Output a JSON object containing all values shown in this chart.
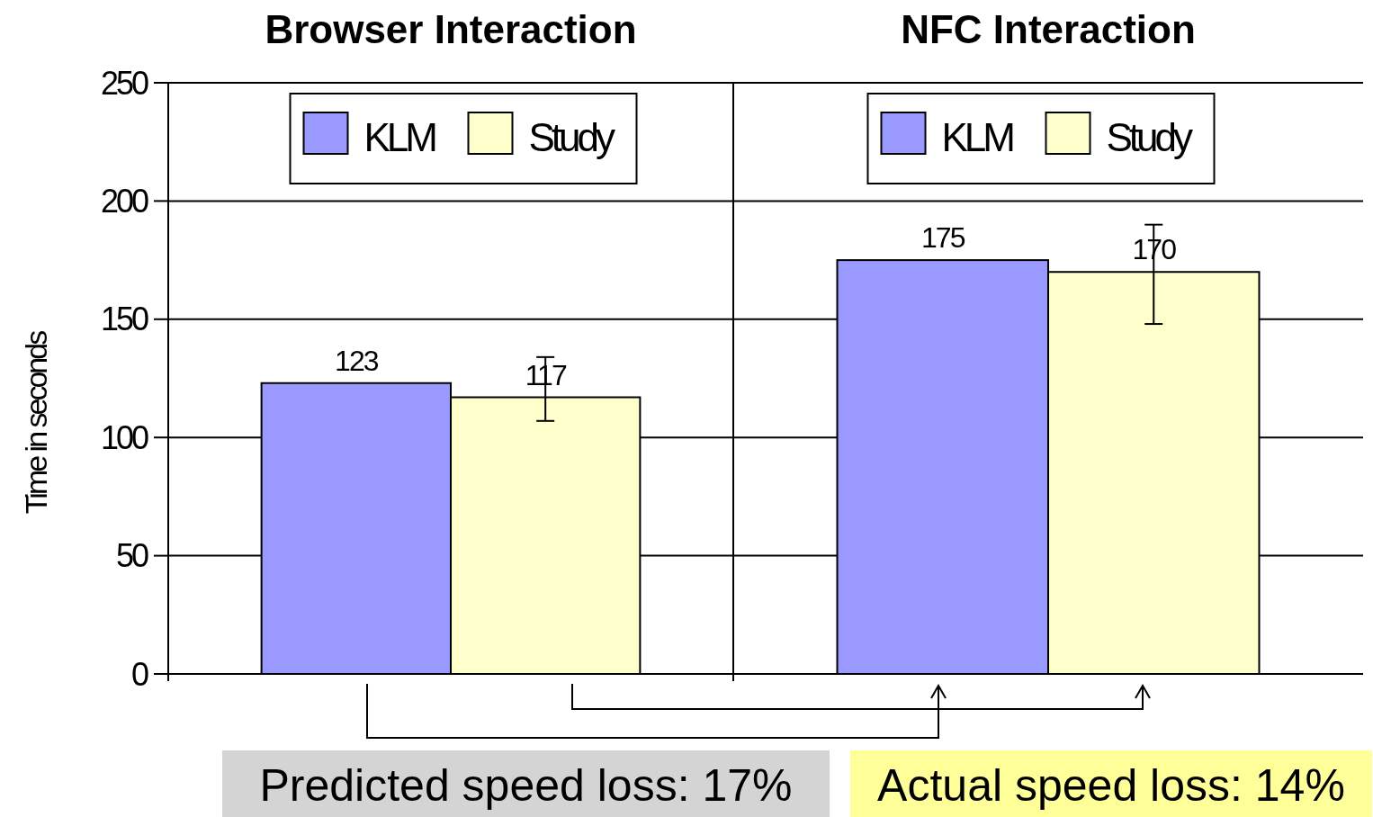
{
  "chart_data": {
    "type": "bar",
    "ylabel": "Time in seconds",
    "categories": [
      "Browser Interaction",
      "NFC Interaction"
    ],
    "series": [
      {
        "name": "KLM",
        "color": "#9999ff",
        "values": [
          123,
          175
        ]
      },
      {
        "name": "Study",
        "color": "#ffffcc",
        "values": [
          117,
          170
        ],
        "errors": [
          [
            107,
            134
          ],
          [
            148,
            190
          ]
        ]
      }
    ],
    "ylim": [
      0,
      250
    ],
    "yticks": [
      0,
      50,
      100,
      150,
      200,
      250
    ],
    "grid": "y",
    "legend": "top",
    "data_labels": true,
    "annotations": [
      "Predicted speed loss: 17%",
      "Actual speed loss: 14%"
    ]
  }
}
